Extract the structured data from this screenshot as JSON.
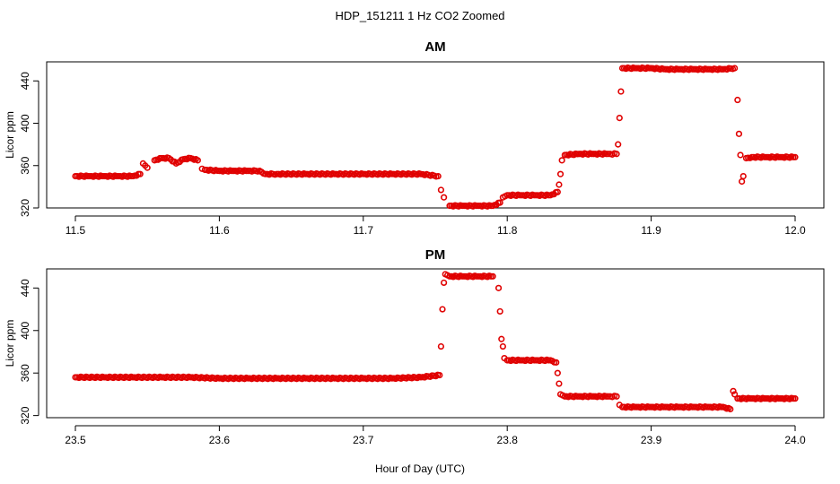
{
  "figure": {
    "title": "HDP_151211  1 Hz CO2 Zoomed",
    "xlabel": "Hour of Day (UTC)",
    "point_color": "#e00000"
  },
  "chart_data": [
    {
      "type": "scatter",
      "title": "AM",
      "xlabel": "",
      "ylabel": "Licor ppm",
      "xlim": [
        11.5,
        12.0
      ],
      "ylim": [
        320,
        458
      ],
      "xticks": [
        11.5,
        11.6,
        11.7,
        11.8,
        11.9,
        12.0
      ],
      "xtick_labels": [
        "11.5",
        "11.6",
        "11.7",
        "11.8",
        "11.9",
        "12.0"
      ],
      "yticks": [
        320,
        360,
        400,
        440
      ],
      "ytick_labels": [
        "320",
        "360",
        "400",
        "440"
      ],
      "series": [
        {
          "x": [
            11.5,
            11.51,
            11.52,
            11.53,
            11.54,
            11.545,
            11.547,
            11.55,
            11.555,
            11.56,
            11.565,
            11.57,
            11.575,
            11.58,
            11.585,
            11.588,
            11.59,
            11.6,
            11.61,
            11.62,
            11.628,
            11.632,
            11.64,
            11.66,
            11.68,
            11.7,
            11.72,
            11.74,
            11.752,
            11.754,
            11.756,
            11.76,
            11.77,
            11.78,
            11.79,
            11.795,
            11.797,
            11.8,
            11.81,
            11.82,
            11.83,
            11.835,
            11.836,
            11.837,
            11.838,
            11.84,
            11.85,
            11.86,
            11.87,
            11.876,
            11.877,
            11.878,
            11.879,
            11.88,
            11.89,
            11.9,
            11.91,
            11.92,
            11.93,
            11.94,
            11.95,
            11.958,
            11.96,
            11.961,
            11.962,
            11.963,
            11.964,
            11.966,
            11.97,
            11.98,
            11.99,
            12.0
          ],
          "y": [
            350,
            350,
            350,
            350,
            350,
            352,
            362,
            358,
            365,
            367,
            367,
            362,
            366,
            367,
            365,
            357,
            356,
            355,
            355,
            355,
            355,
            352,
            352,
            352,
            352,
            352,
            352,
            352,
            350,
            337,
            330,
            322,
            322,
            322,
            322,
            325,
            330,
            332,
            332,
            332,
            332,
            335,
            342,
            352,
            365,
            370,
            371,
            371,
            371,
            371,
            380,
            405,
            430,
            452,
            452,
            452,
            451,
            451,
            451,
            451,
            451,
            452,
            422,
            390,
            370,
            345,
            350,
            367,
            368,
            368,
            368,
            368
          ]
        }
      ]
    },
    {
      "type": "scatter",
      "title": "PM",
      "xlabel": "Hour of Day (UTC)",
      "ylabel": "Licor ppm",
      "xlim": [
        23.5,
        24.0
      ],
      "ylim": [
        318,
        458
      ],
      "xticks": [
        23.5,
        23.6,
        23.7,
        23.8,
        23.9,
        24.0
      ],
      "xtick_labels": [
        "23.5",
        "23.6",
        "23.7",
        "23.8",
        "23.9",
        "24.0"
      ],
      "yticks": [
        320,
        360,
        400,
        440
      ],
      "ytick_labels": [
        "320",
        "360",
        "400",
        "440"
      ],
      "series": [
        {
          "x": [
            23.5,
            23.52,
            23.54,
            23.56,
            23.58,
            23.6,
            23.62,
            23.64,
            23.66,
            23.68,
            23.7,
            23.72,
            23.74,
            23.753,
            23.754,
            23.755,
            23.756,
            23.757,
            23.76,
            23.77,
            23.78,
            23.79,
            23.794,
            23.795,
            23.796,
            23.797,
            23.798,
            23.8,
            23.81,
            23.82,
            23.83,
            23.834,
            23.835,
            23.836,
            23.837,
            23.84,
            23.85,
            23.86,
            23.87,
            23.876,
            23.878,
            23.88,
            23.89,
            23.9,
            23.91,
            23.92,
            23.93,
            23.94,
            23.95,
            23.955,
            23.957,
            23.958,
            23.96,
            23.97,
            23.98,
            23.99,
            24.0
          ],
          "y": [
            356,
            356,
            356,
            356,
            356,
            355,
            355,
            355,
            355,
            355,
            355,
            355,
            356,
            358,
            385,
            420,
            445,
            453,
            451,
            451,
            451,
            451,
            440,
            418,
            392,
            385,
            374,
            372,
            372,
            372,
            372,
            370,
            360,
            350,
            340,
            338,
            338,
            338,
            338,
            338,
            330,
            328,
            328,
            328,
            328,
            328,
            328,
            328,
            328,
            326,
            343,
            340,
            336,
            336,
            336,
            336,
            336
          ]
        }
      ]
    }
  ]
}
